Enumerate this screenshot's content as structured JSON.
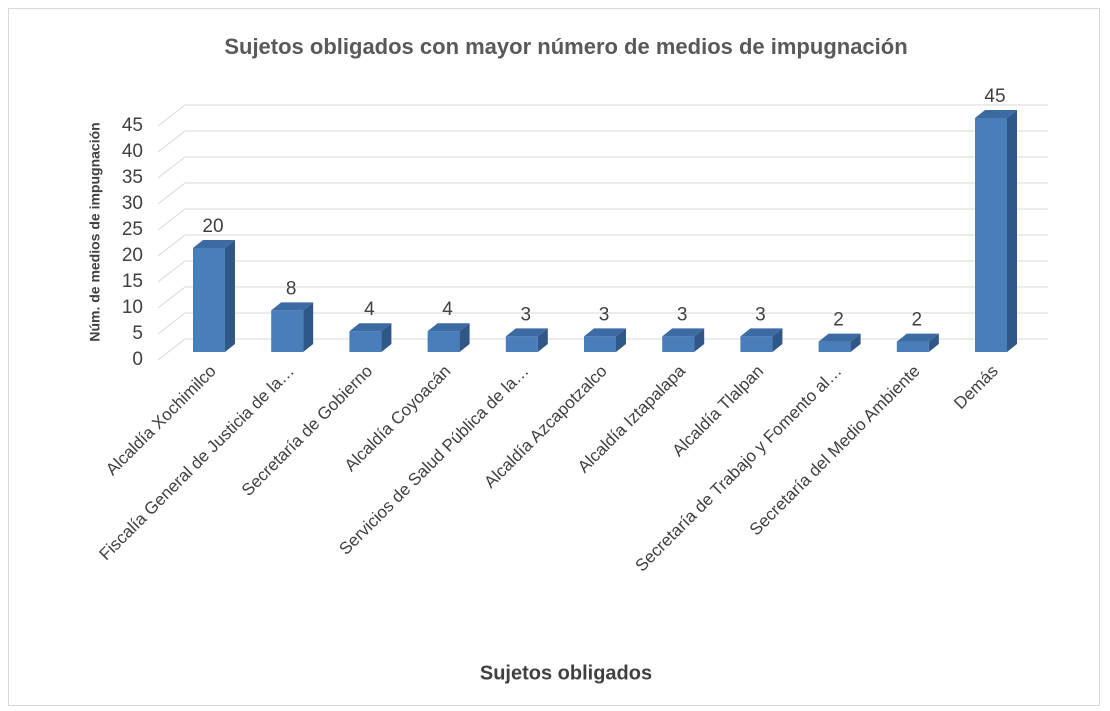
{
  "chart_data": {
    "type": "bar",
    "title": "Sujetos obligados con mayor número de medios de impugnación",
    "x_label": "Sujetos obligados",
    "y_label": "Núm. de medios de impugnación",
    "categories": [
      "Alcaldía Xochimilco",
      "Fiscalía General de Justicia de la…",
      "Secretaría de Gobierno",
      "Alcaldía Coyoacán",
      "Servicios de Salud Pública de la…",
      "Alcaldía Azcapotzalco",
      "Alcaldía Iztapalapa",
      "Alcaldía Tlalpan",
      "Secretaría de Trabajo y Fomento al…",
      "Secretaría del Medio Ambiente",
      "Demás"
    ],
    "values": [
      20,
      8,
      4,
      4,
      3,
      3,
      3,
      3,
      2,
      2,
      45
    ],
    "color": "#4a7ebb",
    "ylim": [
      0,
      45
    ],
    "yticks": [
      0,
      5,
      10,
      15,
      20,
      25,
      30,
      35,
      40,
      45
    ],
    "grid": true
  }
}
